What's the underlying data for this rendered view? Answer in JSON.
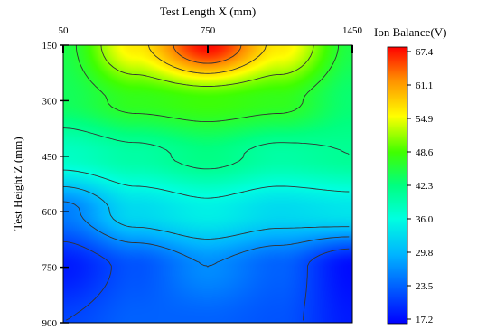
{
  "chart_data": {
    "type": "heatmap",
    "title": "",
    "xlabel": "Test Length X (mm)",
    "ylabel": "Test Height Z (mm)",
    "x_axis_position": "top",
    "y_axis_inverted": true,
    "xlim": [
      50,
      1450
    ],
    "ylim": [
      150,
      900
    ],
    "x_ticks": [
      50,
      750,
      1450
    ],
    "y_ticks": [
      150,
      300,
      450,
      600,
      750,
      900
    ],
    "colorbar": {
      "title": "Ion Balance(V)",
      "range": [
        17.2,
        67.4
      ],
      "ticks": [
        "67.4",
        "61.1",
        "54.9",
        "48.6",
        "42.3",
        "36.0",
        "29.8",
        "23.5",
        "17.2"
      ],
      "colormap": "jet"
    },
    "x": [
      50,
      400,
      750,
      1100,
      1450
    ],
    "z": [
      150,
      300,
      450,
      600,
      750,
      900
    ],
    "values": [
      [
        45,
        56,
        67,
        56,
        45
      ],
      [
        44,
        47,
        48,
        47,
        43
      ],
      [
        38,
        40,
        42,
        40,
        41
      ],
      [
        26,
        33,
        35,
        33,
        34
      ],
      [
        19,
        23,
        27,
        24,
        18
      ],
      [
        22,
        24,
        24,
        23,
        19
      ]
    ],
    "contour_levels": [
      22,
      27,
      31,
      36,
      41,
      46,
      51,
      57,
      62
    ],
    "grid": false,
    "legend": "right"
  }
}
